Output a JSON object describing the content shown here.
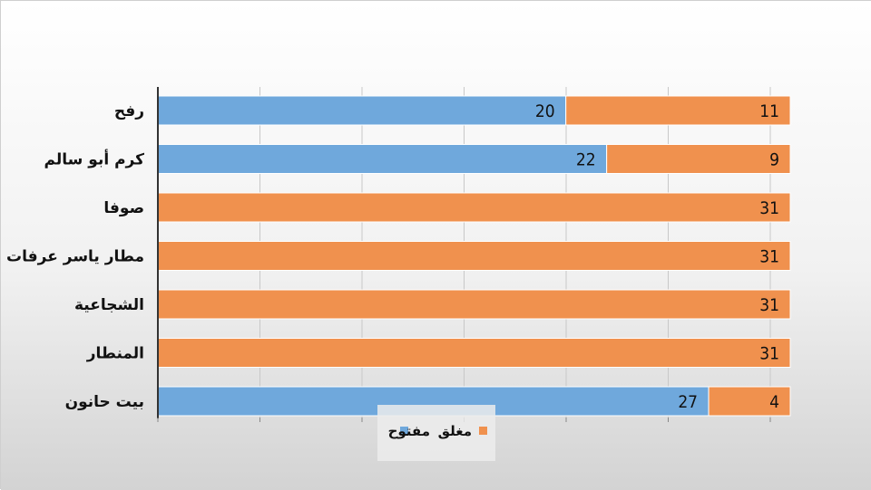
{
  "chart_data": {
    "type": "bar",
    "orientation": "horizontal",
    "stacked": true,
    "categories": [
      "رفح",
      "كرم أبو سالم",
      "صوفا",
      "مطار ياسر عرفات الدولي",
      "الشجاعية",
      "المنطار",
      "بيت حانون"
    ],
    "series": [
      {
        "name": "مفتوح",
        "color": "#6FA8DC",
        "values": [
          20,
          22,
          0,
          0,
          0,
          0,
          27
        ]
      },
      {
        "name": "مغلق",
        "color": "#F0914E",
        "values": [
          11,
          9,
          31,
          31,
          31,
          31,
          4
        ]
      }
    ],
    "xlim": [
      0,
      31
    ],
    "grid": true,
    "legend_position": "bottom",
    "title": "",
    "xlabel": "",
    "ylabel": ""
  }
}
